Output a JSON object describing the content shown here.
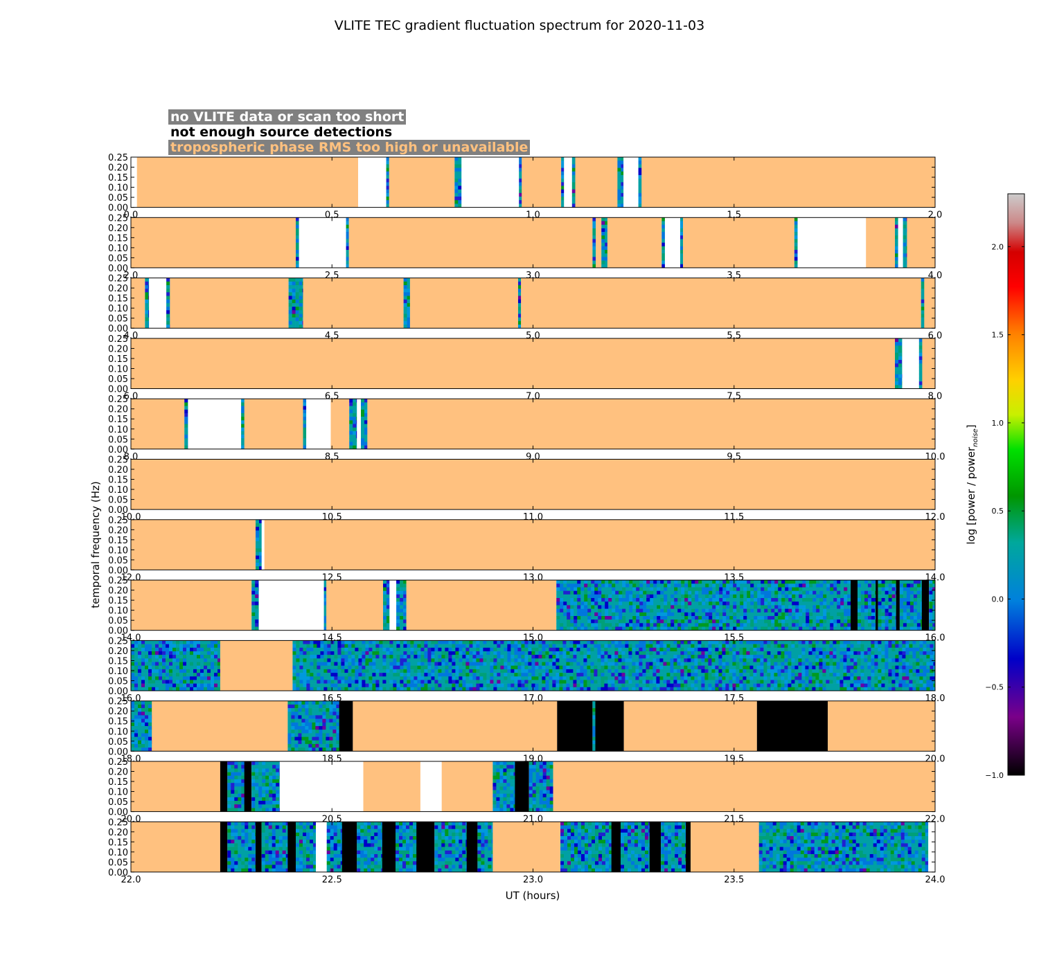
{
  "chart_data": {
    "type": "heatmap",
    "title": "VLITE TEC gradient fluctuation spectrum for 2020-11-03",
    "xlabel": "UT (hours)",
    "ylabel": "temporal frequency (Hz)",
    "ylim": [
      0,
      0.25
    ],
    "yticks": [
      "0.00",
      "0.05",
      "0.10",
      "0.15",
      "0.20",
      "0.25"
    ],
    "panel_hours": 2,
    "colorbar": {
      "label": "log [power / power",
      "label_sub": "noise",
      "label_end": "]",
      "range": [
        -1.0,
        2.3
      ],
      "ticks": [
        "−1.0",
        "−0.5",
        "0.0",
        "0.5",
        "1.0",
        "1.5",
        "2.0"
      ],
      "tick_values": [
        -1.0,
        -0.5,
        0.0,
        0.5,
        1.0,
        1.5,
        2.0
      ],
      "colormap": "nipy_spectral"
    },
    "legend": [
      {
        "text": "no VLITE data or scan too short",
        "text_color": "#ffffff",
        "box_color": "#808080",
        "state": "nodata",
        "fill": "#ffffff"
      },
      {
        "text": "not enough source detections",
        "text_color": "#000000",
        "box_color": "#ffffff",
        "state": "detect",
        "fill": "#000000"
      },
      {
        "text": "tropospheric phase RMS too high or unavailable",
        "text_color": "#ffc17f",
        "box_color": "#808080",
        "state": "trop",
        "fill": "#ffc17f"
      }
    ],
    "panels": [
      {
        "start": 0.0,
        "xticks": [
          "0.0",
          "0.5",
          "1.0",
          "1.5",
          "2.0"
        ],
        "segments": [
          [
            0.0,
            0.015,
            "nodata"
          ],
          [
            0.015,
            0.565,
            "trop"
          ],
          [
            0.565,
            0.635,
            "nodata"
          ],
          [
            0.635,
            0.642,
            "data"
          ],
          [
            0.642,
            0.805,
            "trop"
          ],
          [
            0.805,
            0.822,
            "data"
          ],
          [
            0.822,
            0.965,
            "nodata"
          ],
          [
            0.965,
            0.972,
            "data"
          ],
          [
            0.972,
            1.07,
            "trop"
          ],
          [
            1.07,
            1.077,
            "data"
          ],
          [
            1.077,
            1.097,
            "nodata"
          ],
          [
            1.097,
            1.105,
            "data"
          ],
          [
            1.105,
            1.21,
            "trop"
          ],
          [
            1.21,
            1.225,
            "data"
          ],
          [
            1.225,
            1.262,
            "nodata"
          ],
          [
            1.262,
            1.27,
            "data"
          ],
          [
            1.27,
            2.0,
            "trop"
          ]
        ]
      },
      {
        "start": 2.0,
        "xticks": [
          "2.0",
          "2.5",
          "3.0",
          "3.5",
          "4.0"
        ],
        "segments": [
          [
            2.0,
            2.41,
            "trop"
          ],
          [
            2.41,
            2.418,
            "data"
          ],
          [
            2.418,
            2.535,
            "nodata"
          ],
          [
            2.535,
            2.542,
            "data"
          ],
          [
            2.542,
            3.148,
            "trop"
          ],
          [
            3.148,
            3.156,
            "data"
          ],
          [
            3.156,
            3.17,
            "trop"
          ],
          [
            3.17,
            3.185,
            "data"
          ],
          [
            3.185,
            3.32,
            "trop"
          ],
          [
            3.32,
            3.328,
            "data"
          ],
          [
            3.328,
            3.366,
            "nodata"
          ],
          [
            3.366,
            3.373,
            "data"
          ],
          [
            3.373,
            3.65,
            "trop"
          ],
          [
            3.65,
            3.658,
            "data"
          ],
          [
            3.658,
            3.828,
            "nodata"
          ],
          [
            3.828,
            3.9,
            "trop"
          ],
          [
            3.9,
            3.908,
            "data"
          ],
          [
            3.908,
            3.92,
            "nodata"
          ],
          [
            3.92,
            3.93,
            "data"
          ],
          [
            3.93,
            4.0,
            "trop"
          ]
        ]
      },
      {
        "start": 4.0,
        "xticks": [
          "4.0",
          "4.5",
          "5.0",
          "5.5",
          "6.0"
        ],
        "segments": [
          [
            4.0,
            4.035,
            "trop"
          ],
          [
            4.035,
            4.045,
            "data"
          ],
          [
            4.045,
            4.088,
            "nodata"
          ],
          [
            4.088,
            4.097,
            "data"
          ],
          [
            4.097,
            4.392,
            "trop"
          ],
          [
            4.392,
            4.428,
            "data"
          ],
          [
            4.428,
            4.678,
            "trop"
          ],
          [
            4.678,
            4.694,
            "data"
          ],
          [
            4.694,
            4.963,
            "trop"
          ],
          [
            4.963,
            4.97,
            "data"
          ],
          [
            4.97,
            5.965,
            "trop"
          ],
          [
            5.965,
            5.973,
            "data"
          ],
          [
            5.973,
            6.0,
            "trop"
          ]
        ]
      },
      {
        "start": 6.0,
        "xticks": [
          "6.0",
          "6.5",
          "7.0",
          "7.5",
          "8.0"
        ],
        "segments": [
          [
            6.0,
            7.9,
            "trop"
          ],
          [
            7.9,
            7.918,
            "data"
          ],
          [
            7.918,
            7.96,
            "nodata"
          ],
          [
            7.96,
            7.968,
            "data"
          ],
          [
            7.968,
            8.0,
            "trop"
          ]
        ]
      },
      {
        "start": 8.0,
        "xticks": [
          "8.0",
          "8.5",
          "9.0",
          "9.5",
          "10.0"
        ],
        "segments": [
          [
            8.0,
            8.133,
            "trop"
          ],
          [
            8.133,
            8.142,
            "data"
          ],
          [
            8.142,
            8.274,
            "nodata"
          ],
          [
            8.274,
            8.282,
            "data"
          ],
          [
            8.282,
            8.428,
            "trop"
          ],
          [
            8.428,
            8.436,
            "data"
          ],
          [
            8.436,
            8.497,
            "nodata"
          ],
          [
            8.497,
            8.543,
            "trop"
          ],
          [
            8.543,
            8.562,
            "data"
          ],
          [
            8.562,
            8.572,
            "nodata"
          ],
          [
            8.572,
            8.588,
            "data"
          ],
          [
            8.588,
            10.0,
            "trop"
          ]
        ]
      },
      {
        "start": 10.0,
        "xticks": [
          "10.0",
          "10.5",
          "11.0",
          "11.5",
          "12.0"
        ],
        "segments": [
          [
            10.0,
            12.0,
            "trop"
          ]
        ]
      },
      {
        "start": 12.0,
        "xticks": [
          "12.0",
          "12.5",
          "13.0",
          "13.5",
          "14.0"
        ],
        "segments": [
          [
            12.0,
            12.31,
            "trop"
          ],
          [
            12.31,
            12.325,
            "data"
          ],
          [
            12.325,
            12.332,
            "nodata"
          ],
          [
            12.332,
            14.0,
            "trop"
          ]
        ]
      },
      {
        "start": 14.0,
        "xticks": [
          "14.0",
          "14.5",
          "15.0",
          "15.5",
          "16.0"
        ],
        "segments": [
          [
            14.0,
            14.3,
            "trop"
          ],
          [
            14.3,
            14.318,
            "data"
          ],
          [
            14.318,
            14.48,
            "nodata"
          ],
          [
            14.48,
            14.486,
            "data"
          ],
          [
            14.486,
            14.627,
            "trop"
          ],
          [
            14.627,
            14.643,
            "data"
          ],
          [
            14.643,
            14.66,
            "nodata"
          ],
          [
            14.66,
            14.685,
            "data"
          ],
          [
            14.685,
            15.058,
            "trop"
          ],
          [
            15.058,
            15.79,
            "data"
          ],
          [
            15.79,
            15.807,
            "detect"
          ],
          [
            15.807,
            15.852,
            "data"
          ],
          [
            15.852,
            15.858,
            "detect"
          ],
          [
            15.858,
            15.903,
            "data"
          ],
          [
            15.903,
            15.912,
            "detect"
          ],
          [
            15.912,
            15.967,
            "data"
          ],
          [
            15.967,
            15.985,
            "detect"
          ],
          [
            15.985,
            16.0,
            "data"
          ]
        ]
      },
      {
        "start": 16.0,
        "xticks": [
          "16.0",
          "16.5",
          "17.0",
          "17.5",
          "18.0"
        ],
        "segments": [
          [
            16.0,
            16.222,
            "data"
          ],
          [
            16.222,
            16.402,
            "trop"
          ],
          [
            16.402,
            18.0,
            "data"
          ]
        ]
      },
      {
        "start": 18.0,
        "xticks": [
          "18.0",
          "18.5",
          "19.0",
          "19.5",
          "20.0"
        ],
        "segments": [
          [
            18.0,
            18.052,
            "data"
          ],
          [
            18.052,
            18.39,
            "trop"
          ],
          [
            18.39,
            18.518,
            "data"
          ],
          [
            18.518,
            18.552,
            "detect"
          ],
          [
            18.552,
            19.06,
            "trop"
          ],
          [
            19.06,
            19.148,
            "detect"
          ],
          [
            19.148,
            19.155,
            "data"
          ],
          [
            19.155,
            19.226,
            "detect"
          ],
          [
            19.226,
            19.557,
            "trop"
          ],
          [
            19.557,
            19.733,
            "detect"
          ],
          [
            19.733,
            20.0,
            "trop"
          ]
        ]
      },
      {
        "start": 20.0,
        "xticks": [
          "20.0",
          "20.5",
          "21.0",
          "21.5",
          "22.0"
        ],
        "segments": [
          [
            20.0,
            20.222,
            "trop"
          ],
          [
            20.222,
            20.24,
            "detect"
          ],
          [
            20.24,
            20.282,
            "data"
          ],
          [
            20.282,
            20.3,
            "detect"
          ],
          [
            20.3,
            20.37,
            "data"
          ],
          [
            20.37,
            20.578,
            "nodata"
          ],
          [
            20.578,
            20.72,
            "trop"
          ],
          [
            20.72,
            20.773,
            "nodata"
          ],
          [
            20.773,
            20.9,
            "trop"
          ],
          [
            20.9,
            20.955,
            "data"
          ],
          [
            20.955,
            20.99,
            "detect"
          ],
          [
            20.99,
            21.05,
            "data"
          ],
          [
            21.05,
            22.0,
            "trop"
          ]
        ]
      },
      {
        "start": 22.0,
        "xticks": [
          "22.0",
          "22.5",
          "23.0",
          "23.5",
          "24.0"
        ],
        "segments": [
          [
            22.0,
            22.222,
            "trop"
          ],
          [
            22.222,
            22.24,
            "detect"
          ],
          [
            22.24,
            22.31,
            "data"
          ],
          [
            22.31,
            22.325,
            "detect"
          ],
          [
            22.325,
            22.39,
            "data"
          ],
          [
            22.39,
            22.41,
            "detect"
          ],
          [
            22.41,
            22.46,
            "data"
          ],
          [
            22.46,
            22.487,
            "nodata"
          ],
          [
            22.487,
            22.525,
            "data"
          ],
          [
            22.525,
            22.562,
            "detect"
          ],
          [
            22.562,
            22.625,
            "data"
          ],
          [
            22.625,
            22.658,
            "detect"
          ],
          [
            22.658,
            22.71,
            "data"
          ],
          [
            22.71,
            22.755,
            "detect"
          ],
          [
            22.755,
            22.835,
            "data"
          ],
          [
            22.835,
            22.862,
            "detect"
          ],
          [
            22.862,
            22.9,
            "data"
          ],
          [
            22.9,
            23.068,
            "trop"
          ],
          [
            23.068,
            23.195,
            "data"
          ],
          [
            23.195,
            23.218,
            "detect"
          ],
          [
            23.218,
            23.29,
            "data"
          ],
          [
            23.29,
            23.318,
            "detect"
          ],
          [
            23.318,
            23.38,
            "data"
          ],
          [
            23.38,
            23.392,
            "detect"
          ],
          [
            23.392,
            23.562,
            "trop"
          ],
          [
            23.562,
            23.983,
            "data"
          ],
          [
            23.983,
            24.0,
            "nodata"
          ]
        ]
      }
    ]
  }
}
